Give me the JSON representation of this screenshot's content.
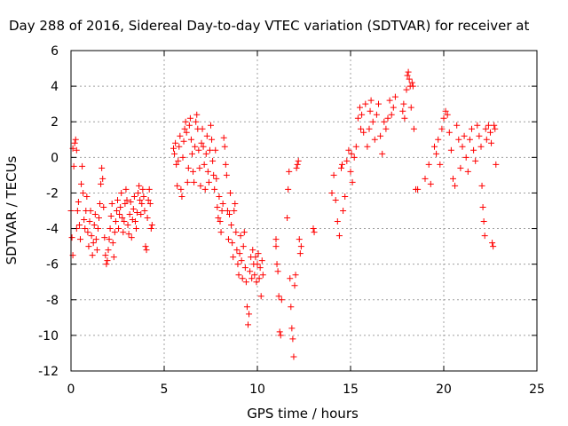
{
  "chart_data": {
    "type": "scatter",
    "title": "Day 288 of 2016, Sidereal Day-to-day VTEC variation (SDTVAR) for receiver at",
    "xlabel": "GPS time / hours",
    "ylabel": "SDTVAR / TECUs",
    "xlim": [
      0,
      25
    ],
    "ylim": [
      -12,
      6
    ],
    "x_ticks": [
      0,
      5,
      10,
      15,
      20,
      25
    ],
    "y_ticks": [
      -12,
      -10,
      -8,
      -6,
      -4,
      -2,
      0,
      2,
      4,
      6
    ],
    "x_tick_labels": [
      "0",
      "5",
      "10",
      "15",
      "20",
      "25"
    ],
    "y_tick_labels": [
      "-12",
      "-10",
      "-8",
      "-6",
      "-4",
      "-2",
      "0",
      "2",
      "4",
      "6"
    ],
    "grid": true,
    "marker": "plus",
    "color": "#ff0000",
    "series": [
      {
        "values": [
          [
            0.0,
            -3.0
          ],
          [
            0.05,
            -4.5
          ],
          [
            0.1,
            -5.5
          ],
          [
            0.1,
            0.5
          ],
          [
            0.15,
            -0.5
          ],
          [
            0.2,
            0.8
          ],
          [
            0.25,
            1.0
          ],
          [
            0.3,
            0.4
          ],
          [
            0.3,
            -4.0
          ],
          [
            0.35,
            -3.0
          ],
          [
            0.4,
            -2.5
          ],
          [
            0.45,
            -3.8
          ],
          [
            0.5,
            -4.6
          ],
          [
            0.55,
            -1.5
          ],
          [
            0.6,
            -0.5
          ],
          [
            0.65,
            -2.0
          ],
          [
            0.7,
            -3.5
          ],
          [
            0.75,
            -4.0
          ],
          [
            0.8,
            -3.0
          ],
          [
            0.85,
            -2.2
          ],
          [
            0.9,
            -4.2
          ],
          [
            0.95,
            -5.0
          ],
          [
            1.0,
            -3.6
          ],
          [
            1.05,
            -3.0
          ],
          [
            1.1,
            -4.4
          ],
          [
            1.15,
            -5.5
          ],
          [
            1.2,
            -4.8
          ],
          [
            1.25,
            -3.8
          ],
          [
            1.3,
            -3.2
          ],
          [
            1.35,
            -4.6
          ],
          [
            1.4,
            -5.2
          ],
          [
            1.45,
            -4.0
          ],
          [
            1.5,
            -3.4
          ],
          [
            1.55,
            -2.6
          ],
          [
            1.6,
            -1.5
          ],
          [
            1.65,
            -0.6
          ],
          [
            1.7,
            -1.2
          ],
          [
            1.75,
            -2.8
          ],
          [
            1.8,
            -4.5
          ],
          [
            1.85,
            -5.5
          ],
          [
            1.9,
            -6.0
          ],
          [
            1.95,
            -5.8
          ],
          [
            2.0,
            -5.2
          ],
          [
            2.05,
            -4.6
          ],
          [
            2.1,
            -4.0
          ],
          [
            2.15,
            -3.3
          ],
          [
            2.2,
            -2.6
          ],
          [
            2.25,
            -4.8
          ],
          [
            2.3,
            -5.6
          ],
          [
            2.35,
            -4.2
          ],
          [
            2.4,
            -3.6
          ],
          [
            2.45,
            -3.0
          ],
          [
            2.5,
            -2.4
          ],
          [
            2.55,
            -4.0
          ],
          [
            2.6,
            -3.2
          ],
          [
            2.65,
            -2.8
          ],
          [
            2.7,
            -2.0
          ],
          [
            2.75,
            -3.4
          ],
          [
            2.8,
            -4.2
          ],
          [
            2.85,
            -3.6
          ],
          [
            2.9,
            -2.6
          ],
          [
            2.95,
            -1.8
          ],
          [
            3.0,
            -2.4
          ],
          [
            3.05,
            -3.8
          ],
          [
            3.1,
            -4.3
          ],
          [
            3.15,
            -3.2
          ],
          [
            3.2,
            -2.5
          ],
          [
            3.25,
            -4.5
          ],
          [
            3.3,
            -3.5
          ],
          [
            3.35,
            -2.9
          ],
          [
            3.4,
            -2.2
          ],
          [
            3.45,
            -3.6
          ],
          [
            3.5,
            -4.0
          ],
          [
            3.55,
            -3.1
          ],
          [
            3.6,
            -2.0
          ],
          [
            3.65,
            -1.6
          ],
          [
            3.7,
            -2.4
          ],
          [
            3.75,
            -3.2
          ],
          [
            3.8,
            -2.6
          ],
          [
            3.85,
            -1.8
          ],
          [
            3.9,
            -2.2
          ],
          [
            3.95,
            -3.0
          ],
          [
            4.0,
            -5.0
          ],
          [
            4.05,
            -5.2
          ],
          [
            4.1,
            -3.4
          ],
          [
            4.15,
            -2.4
          ],
          [
            4.2,
            -1.8
          ],
          [
            4.25,
            -2.6
          ],
          [
            4.3,
            -4.0
          ],
          [
            4.35,
            -3.8
          ],
          [
            5.5,
            0.5
          ],
          [
            5.55,
            0.2
          ],
          [
            5.6,
            0.8
          ],
          [
            5.65,
            -0.4
          ],
          [
            5.7,
            -1.6
          ],
          [
            5.75,
            -0.2
          ],
          [
            5.8,
            0.6
          ],
          [
            5.85,
            1.2
          ],
          [
            5.9,
            -1.8
          ],
          [
            5.95,
            -2.2
          ],
          [
            6.0,
            0.0
          ],
          [
            6.05,
            0.9
          ],
          [
            6.1,
            1.6
          ],
          [
            6.15,
            2.0
          ],
          [
            6.2,
            1.4
          ],
          [
            6.25,
            -1.4
          ],
          [
            6.3,
            -0.6
          ],
          [
            6.35,
            1.8
          ],
          [
            6.4,
            2.2
          ],
          [
            6.45,
            1.0
          ],
          [
            6.5,
            0.2
          ],
          [
            6.55,
            -0.8
          ],
          [
            6.6,
            -1.4
          ],
          [
            6.65,
            0.6
          ],
          [
            6.7,
            2.0
          ],
          [
            6.75,
            2.4
          ],
          [
            6.8,
            1.6
          ],
          [
            6.85,
            0.4
          ],
          [
            6.9,
            -0.6
          ],
          [
            6.95,
            -1.6
          ],
          [
            7.0,
            0.8
          ],
          [
            7.05,
            1.6
          ],
          [
            7.1,
            0.6
          ],
          [
            7.15,
            -0.4
          ],
          [
            7.2,
            -1.8
          ],
          [
            7.25,
            0.2
          ],
          [
            7.3,
            1.2
          ],
          [
            7.35,
            -0.8
          ],
          [
            7.4,
            -1.4
          ],
          [
            7.45,
            0.4
          ],
          [
            7.5,
            1.8
          ],
          [
            7.55,
            1.0
          ],
          [
            7.6,
            -0.2
          ],
          [
            7.65,
            -1.0
          ],
          [
            7.7,
            -1.8
          ],
          [
            7.75,
            0.4
          ],
          [
            7.8,
            -1.2
          ],
          [
            7.85,
            -2.8
          ],
          [
            7.9,
            -3.4
          ],
          [
            7.95,
            -2.2
          ],
          [
            8.0,
            -3.6
          ],
          [
            8.05,
            -4.2
          ],
          [
            8.1,
            -3.0
          ],
          [
            8.15,
            -2.6
          ],
          [
            8.2,
            1.1
          ],
          [
            8.25,
            0.6
          ],
          [
            8.3,
            -0.4
          ],
          [
            8.35,
            -1.0
          ],
          [
            8.4,
            -3.0
          ],
          [
            8.45,
            -4.6
          ],
          [
            8.5,
            -3.2
          ],
          [
            8.55,
            -2.0
          ],
          [
            8.6,
            -3.8
          ],
          [
            8.65,
            -4.8
          ],
          [
            8.7,
            -5.6
          ],
          [
            8.75,
            -3.0
          ],
          [
            8.8,
            -2.6
          ],
          [
            8.85,
            -4.2
          ],
          [
            8.9,
            -5.2
          ],
          [
            8.95,
            -6.0
          ],
          [
            9.0,
            -6.6
          ],
          [
            9.05,
            -5.4
          ],
          [
            9.1,
            -4.4
          ],
          [
            9.15,
            -5.8
          ],
          [
            9.2,
            -6.8
          ],
          [
            9.25,
            -5.0
          ],
          [
            9.3,
            -4.2
          ],
          [
            9.35,
            -6.2
          ],
          [
            9.4,
            -7.0
          ],
          [
            9.45,
            -8.4
          ],
          [
            9.5,
            -9.4
          ],
          [
            9.55,
            -8.8
          ],
          [
            9.6,
            -6.4
          ],
          [
            9.65,
            -5.6
          ],
          [
            9.7,
            -6.8
          ],
          [
            9.75,
            -5.2
          ],
          [
            9.8,
            -6.0
          ],
          [
            9.85,
            -6.6
          ],
          [
            9.9,
            -5.6
          ],
          [
            9.95,
            -7.0
          ],
          [
            10.0,
            -6.0
          ],
          [
            10.05,
            -5.4
          ],
          [
            10.1,
            -6.8
          ],
          [
            10.15,
            -6.2
          ],
          [
            10.2,
            -7.8
          ],
          [
            10.25,
            -5.8
          ],
          [
            10.3,
            -6.6
          ],
          [
            11.0,
            -4.6
          ],
          [
            11.0,
            -5.0
          ],
          [
            11.05,
            -6.0
          ],
          [
            11.1,
            -6.4
          ],
          [
            11.15,
            -7.8
          ],
          [
            11.2,
            -9.8
          ],
          [
            11.25,
            -10.0
          ],
          [
            11.3,
            -8.0
          ],
          [
            11.6,
            -3.4
          ],
          [
            11.65,
            -1.8
          ],
          [
            11.7,
            -0.8
          ],
          [
            11.75,
            -6.8
          ],
          [
            11.8,
            -8.4
          ],
          [
            11.85,
            -9.6
          ],
          [
            11.9,
            -10.2
          ],
          [
            11.95,
            -11.2
          ],
          [
            12.0,
            -7.2
          ],
          [
            12.05,
            -6.6
          ],
          [
            12.1,
            -0.6
          ],
          [
            12.15,
            -0.4
          ],
          [
            12.2,
            -0.2
          ],
          [
            12.25,
            -4.6
          ],
          [
            12.3,
            -5.4
          ],
          [
            12.35,
            -5.0
          ],
          [
            13.0,
            -4.0
          ],
          [
            13.05,
            -4.2
          ],
          [
            14.0,
            -2.0
          ],
          [
            14.1,
            -1.0
          ],
          [
            14.2,
            -2.4
          ],
          [
            14.3,
            -3.6
          ],
          [
            14.4,
            -4.4
          ],
          [
            14.5,
            -0.6
          ],
          [
            14.55,
            -0.4
          ],
          [
            14.6,
            -3.0
          ],
          [
            14.7,
            -2.2
          ],
          [
            14.8,
            -0.2
          ],
          [
            14.9,
            0.4
          ],
          [
            15.0,
            -0.8
          ],
          [
            15.05,
            0.2
          ],
          [
            15.1,
            -1.4
          ],
          [
            15.2,
            0.0
          ],
          [
            15.3,
            0.6
          ],
          [
            15.4,
            2.2
          ],
          [
            15.5,
            2.8
          ],
          [
            15.55,
            1.6
          ],
          [
            15.6,
            2.4
          ],
          [
            15.7,
            1.4
          ],
          [
            15.8,
            3.0
          ],
          [
            15.9,
            0.6
          ],
          [
            16.0,
            1.6
          ],
          [
            16.05,
            2.6
          ],
          [
            16.1,
            3.2
          ],
          [
            16.2,
            2.0
          ],
          [
            16.3,
            1.0
          ],
          [
            16.4,
            2.4
          ],
          [
            16.5,
            3.0
          ],
          [
            16.6,
            1.2
          ],
          [
            16.7,
            0.2
          ],
          [
            16.8,
            2.0
          ],
          [
            16.9,
            1.6
          ],
          [
            17.0,
            2.2
          ],
          [
            17.1,
            3.2
          ],
          [
            17.2,
            2.4
          ],
          [
            17.3,
            2.8
          ],
          [
            17.4,
            3.4
          ],
          [
            17.8,
            2.6
          ],
          [
            17.85,
            3.0
          ],
          [
            17.9,
            2.2
          ],
          [
            18.0,
            3.8
          ],
          [
            18.05,
            4.6
          ],
          [
            18.1,
            4.8
          ],
          [
            18.15,
            4.4
          ],
          [
            18.2,
            4.0
          ],
          [
            18.25,
            2.8
          ],
          [
            18.3,
            4.2
          ],
          [
            18.35,
            4.0
          ],
          [
            18.4,
            1.6
          ],
          [
            18.5,
            -1.8
          ],
          [
            18.6,
            -1.8
          ],
          [
            19.0,
            -1.2
          ],
          [
            19.2,
            -0.4
          ],
          [
            19.3,
            -1.5
          ],
          [
            19.5,
            0.6
          ],
          [
            19.6,
            0.2
          ],
          [
            19.7,
            1.0
          ],
          [
            19.8,
            -0.4
          ],
          [
            19.9,
            1.6
          ],
          [
            20.0,
            2.2
          ],
          [
            20.1,
            2.6
          ],
          [
            20.2,
            2.4
          ],
          [
            20.3,
            1.4
          ],
          [
            20.4,
            0.4
          ],
          [
            20.5,
            -1.2
          ],
          [
            20.6,
            -1.6
          ],
          [
            20.7,
            1.8
          ],
          [
            20.8,
            1.0
          ],
          [
            20.9,
            -0.6
          ],
          [
            21.0,
            0.6
          ],
          [
            21.1,
            1.2
          ],
          [
            21.2,
            0.0
          ],
          [
            21.3,
            -0.8
          ],
          [
            21.4,
            1.0
          ],
          [
            21.5,
            1.6
          ],
          [
            21.6,
            0.4
          ],
          [
            21.7,
            -0.2
          ],
          [
            21.8,
            1.8
          ],
          [
            21.9,
            1.2
          ],
          [
            22.0,
            0.6
          ],
          [
            22.05,
            -1.6
          ],
          [
            22.1,
            -2.8
          ],
          [
            22.15,
            -3.6
          ],
          [
            22.2,
            -4.4
          ],
          [
            22.25,
            1.6
          ],
          [
            22.3,
            1.0
          ],
          [
            22.4,
            1.8
          ],
          [
            22.5,
            1.4
          ],
          [
            22.55,
            0.8
          ],
          [
            22.6,
            -4.8
          ],
          [
            22.65,
            -5.0
          ],
          [
            22.7,
            1.8
          ],
          [
            22.75,
            1.6
          ],
          [
            22.8,
            -0.4
          ]
        ]
      }
    ]
  }
}
